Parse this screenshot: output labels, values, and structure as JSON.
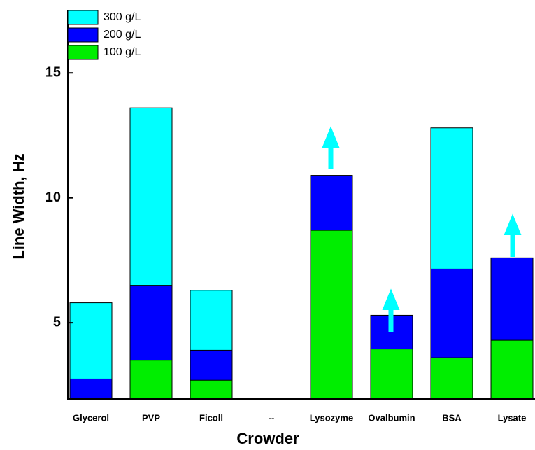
{
  "chart_data": {
    "type": "bar",
    "x_label": "Crowder",
    "y_label": "Line Width, Hz",
    "categories": [
      "Glycerol",
      "PVP",
      "Ficoll",
      "--",
      "Lysozyme",
      "Ovalbumin",
      "BSA",
      "Lysate"
    ],
    "series": [
      {
        "name": "300 g/L",
        "color": "#00ffff",
        "values": [
          5.8,
          13.6,
          6.3,
          null,
          null,
          null,
          12.8,
          null
        ]
      },
      {
        "name": "200 g/L",
        "color": "#0000ff",
        "values": [
          2.75,
          6.5,
          3.9,
          null,
          10.9,
          5.3,
          7.15,
          7.6
        ]
      },
      {
        "name": "100 g/L",
        "color": "#00ee00",
        "values": [
          null,
          3.5,
          2.7,
          null,
          8.7,
          3.95,
          3.6,
          4.3
        ]
      }
    ],
    "ylim": [
      1.95,
      17.5
    ],
    "yticks": [
      5,
      10,
      15
    ],
    "legend": "upper left"
  }
}
